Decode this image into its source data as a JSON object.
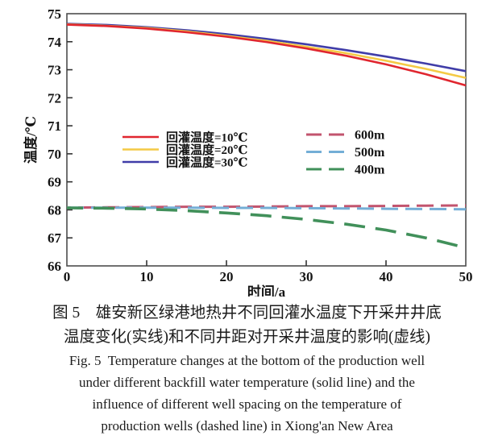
{
  "figure": {
    "captions": {
      "cn_line1": "图 5　雄安新区绿港地热井不同回灌水温度下开采井井底",
      "cn_line2": "温度变化(实线)和不同井距对开采井温度的影响(虚线)",
      "en_line1": "Fig. 5  Temperature changes at the bottom of the production well",
      "en_line2": "under different backfill water temperature (solid line) and the",
      "en_line3": "influence of different well spacing on the temperature of",
      "en_line4": "production wells (dashed line) in Xiong'an New Area"
    }
  },
  "chart_data": {
    "type": "line",
    "title": "",
    "xlabel": "时间/a",
    "ylabel": "温度/℃",
    "xlim": [
      0,
      50
    ],
    "ylim": [
      66,
      75
    ],
    "xticks": [
      0,
      10,
      20,
      30,
      40,
      50
    ],
    "yticks": [
      66,
      67,
      68,
      69,
      70,
      71,
      72,
      73,
      74,
      75
    ],
    "grid": false,
    "legend_position": "inside-middle",
    "x": [
      0,
      5,
      10,
      15,
      20,
      25,
      30,
      35,
      40,
      45,
      50
    ],
    "series": [
      {
        "name": "回灌温度=10℃",
        "style": "solid",
        "color": "#e0262f",
        "values": [
          74.61,
          74.56,
          74.47,
          74.34,
          74.18,
          73.99,
          73.76,
          73.5,
          73.19,
          72.84,
          72.44
        ]
      },
      {
        "name": "回灌温度=20℃",
        "style": "solid",
        "color": "#f4ca45",
        "values": [
          74.62,
          74.57,
          74.49,
          74.37,
          74.21,
          74.03,
          73.82,
          73.59,
          73.32,
          73.03,
          72.71
        ]
      },
      {
        "name": "回灌温度=30℃",
        "style": "solid",
        "color": "#403da8",
        "values": [
          74.64,
          74.6,
          74.52,
          74.41,
          74.27,
          74.1,
          73.91,
          73.7,
          73.47,
          73.22,
          72.95
        ]
      },
      {
        "name": "600m",
        "style": "dashed",
        "color": "#c2546e",
        "values": [
          68.08,
          68.09,
          68.1,
          68.11,
          68.11,
          68.12,
          68.13,
          68.13,
          68.14,
          68.15,
          68.16
        ]
      },
      {
        "name": "500m",
        "style": "dashed",
        "color": "#74aed6",
        "values": [
          68.08,
          68.08,
          68.08,
          68.08,
          68.07,
          68.07,
          68.06,
          68.05,
          68.04,
          68.03,
          68.02
        ]
      },
      {
        "name": "400m",
        "style": "dashed",
        "color": "#41905a",
        "values": [
          68.07,
          68.06,
          68.03,
          67.97,
          67.89,
          67.79,
          67.66,
          67.49,
          67.28,
          67.0,
          66.65
        ]
      }
    ]
  }
}
